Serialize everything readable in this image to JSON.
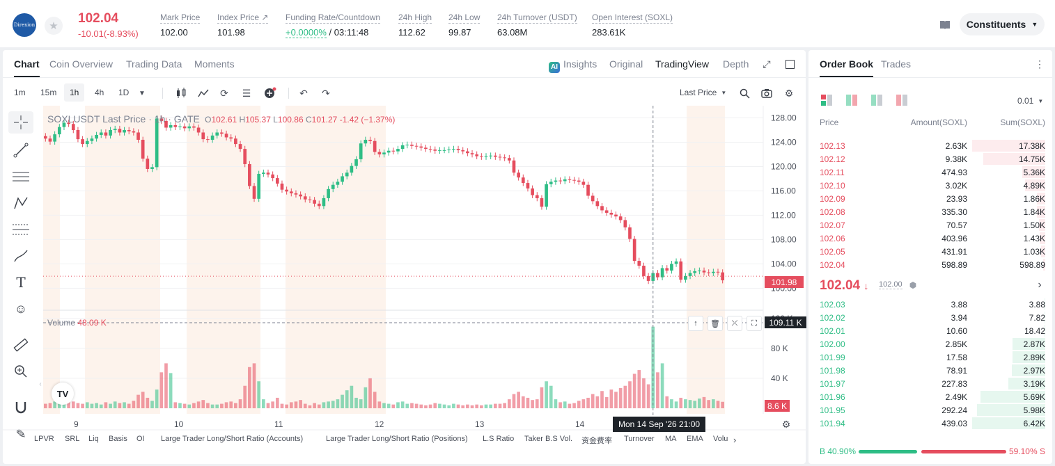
{
  "header": {
    "logo_text": "Direxion",
    "last_price": "102.04",
    "change": "-10.01(-8.93%)",
    "stats": [
      {
        "label": "Mark Price",
        "value": "102.00"
      },
      {
        "label": "Index Price ↗",
        "value": "101.98"
      },
      {
        "label": "Funding Rate/Countdown",
        "value_green": "+0.0000%",
        "value": "/ 03:11:48"
      },
      {
        "label": "24h High",
        "value": "112.62"
      },
      {
        "label": "24h Low",
        "value": "99.87"
      },
      {
        "label": "24h Turnover (USDT)",
        "value": "63.08M"
      },
      {
        "label": "Open Interest (SOXL)",
        "value": "283.61K"
      }
    ],
    "constituents_label": "Constituents"
  },
  "chart_panel": {
    "tabs": [
      "Chart",
      "Coin Overview",
      "Trading Data",
      "Moments"
    ],
    "view_tabs": [
      "Insights",
      "Original",
      "TradingView",
      "Depth"
    ],
    "ai_badge": "AI",
    "timeframes": [
      "1m",
      "15m",
      "1h",
      "4h",
      "1D"
    ],
    "price_type": "Last Price",
    "legend_title": "SOXLUSDT Last Price · 1h · GATE",
    "ohlc": {
      "o": "102.61",
      "h": "105.37",
      "l": "100.86",
      "c": "101.27",
      "chg": "-1.42 (−1.37%)"
    },
    "volume_label": "Volume",
    "volume_value": "48.09 K",
    "price_tag": "101.98",
    "volume_tag": "109.11 K",
    "volume_last_tag": "8.6 K",
    "crosshair_time": "Mon 14 Sep '26   21:00",
    "tv_logo": "TV",
    "indicators": [
      "LPVR",
      "SRL",
      "Liq",
      "Basis",
      "OI",
      "Large Trader Long/Short Ratio (Accounts)",
      "Large Trader Long/Short Ratio (Positions)",
      "L.S Ratio",
      "Taker B.S Vol.",
      "资金费率",
      "Turnover",
      "MA",
      "EMA",
      "Volu"
    ]
  },
  "chart_data": {
    "type": "candlestick",
    "symbol": "SOXLUSDT",
    "interval": "1h",
    "price_axis": {
      "ticks": [
        "128.00",
        "124.00",
        "120.00",
        "116.00",
        "112.00",
        "108.00",
        "104.00",
        "100.00"
      ],
      "range": [
        96.5,
        130
      ]
    },
    "volume_axis": {
      "ticks": [
        "120 K",
        "80 K",
        "40 K"
      ],
      "max": 130
    },
    "x_ticks": [
      "9",
      "10",
      "11",
      "12",
      "13",
      "14"
    ],
    "closes": [
      124.6,
      124.1,
      125.3,
      126.5,
      127.2,
      127.0,
      126.0,
      124.5,
      123.7,
      124.2,
      124.6,
      125.2,
      125.6,
      125.1,
      126.0,
      126.2,
      125.6,
      126.0,
      125.8,
      125.6,
      124.4,
      121.3,
      119.6,
      119.9,
      127.9,
      127.5,
      126.4,
      126.8,
      126.5,
      126.6,
      126.3,
      126.6,
      126.4,
      125.6,
      124.5,
      124.4,
      125.1,
      125.6,
      125.4,
      124.8,
      124.6,
      123.7,
      122.9,
      120.4,
      116.8,
      114.7,
      118.8,
      119.0,
      118.7,
      118.1,
      117.2,
      116.2,
      115.9,
      115.6,
      115.4,
      115.1,
      114.6,
      114.5,
      113.9,
      113.5,
      114.8,
      116.3,
      117.0,
      117.5,
      118.4,
      119.0,
      120.1,
      121.2,
      123.8,
      124.4,
      124.2,
      122.4,
      122.0,
      122.3,
      122.6,
      122.5,
      122.9,
      123.5,
      123.6,
      123.4,
      123.3,
      123.1,
      122.9,
      122.8,
      122.6,
      122.7,
      122.7,
      122.8,
      122.9,
      122.7,
      122.5,
      122.2,
      122.0,
      121.7,
      121.6,
      121.7,
      121.8,
      121.6,
      121.5,
      121.4,
      121.0,
      119.0,
      118.2,
      117.3,
      116.4,
      115.3,
      114.8,
      113.4,
      117.1,
      117.5,
      117.7,
      117.6,
      117.9,
      117.8,
      117.7,
      117.5,
      117.0,
      115.2,
      114.3,
      113.5,
      112.8,
      112.4,
      112.1,
      111.8,
      111.2,
      110.0,
      108.1,
      104.5,
      103.7,
      102.0,
      101.2,
      102.5,
      101.8,
      103.3,
      102.9,
      104.0,
      104.4,
      101.4,
      102.0,
      102.5,
      102.8,
      102.9,
      102.6,
      102.5,
      102.7,
      102.6,
      101.3
    ],
    "volumes": [
      6,
      7,
      9,
      8,
      12,
      10,
      9,
      7,
      6,
      8,
      6,
      7,
      5,
      8,
      6,
      9,
      7,
      8,
      6,
      10,
      18,
      22,
      14,
      10,
      25,
      48,
      60,
      47,
      8,
      7,
      6,
      5,
      7,
      9,
      11,
      7,
      5,
      5,
      6,
      8,
      9,
      7,
      12,
      30,
      55,
      60,
      36,
      12,
      7,
      9,
      14,
      6,
      5,
      8,
      9,
      11,
      6,
      4,
      7,
      5,
      8,
      9,
      10,
      12,
      18,
      24,
      30,
      14,
      12,
      28,
      40,
      22,
      9,
      7,
      6,
      5,
      8,
      9,
      6,
      7,
      6,
      5,
      4,
      5,
      7,
      6,
      5,
      4,
      6,
      5,
      4,
      5,
      4,
      5,
      4,
      5,
      5,
      6,
      6,
      7,
      12,
      19,
      22,
      16,
      14,
      11,
      12,
      28,
      36,
      30,
      12,
      8,
      9,
      6,
      7,
      10,
      12,
      14,
      19,
      16,
      23,
      15,
      25,
      22,
      27,
      30,
      36,
      46,
      51,
      40,
      32,
      109,
      48,
      60,
      16,
      12,
      9,
      14,
      12,
      11,
      10,
      13,
      15,
      11,
      12,
      10,
      8.6
    ]
  },
  "order_book": {
    "tabs": [
      "Order Book",
      "Trades"
    ],
    "precision": "0.01",
    "columns": [
      "Price",
      "Amount(SOXL)",
      "Sum(SOXL)"
    ],
    "asks": [
      {
        "price": "102.13",
        "amount": "2.63K",
        "sum": "17.38K",
        "depth": 1.0
      },
      {
        "price": "102.12",
        "amount": "9.38K",
        "sum": "14.75K",
        "depth": 0.85
      },
      {
        "price": "102.11",
        "amount": "474.93",
        "sum": "5.36K",
        "depth": 0.31
      },
      {
        "price": "102.10",
        "amount": "3.02K",
        "sum": "4.89K",
        "depth": 0.28
      },
      {
        "price": "102.09",
        "amount": "23.93",
        "sum": "1.86K",
        "depth": 0.11
      },
      {
        "price": "102.08",
        "amount": "335.30",
        "sum": "1.84K",
        "depth": 0.11
      },
      {
        "price": "102.07",
        "amount": "70.57",
        "sum": "1.50K",
        "depth": 0.09
      },
      {
        "price": "102.06",
        "amount": "403.96",
        "sum": "1.43K",
        "depth": 0.08
      },
      {
        "price": "102.05",
        "amount": "431.91",
        "sum": "1.03K",
        "depth": 0.06
      },
      {
        "price": "102.04",
        "amount": "598.89",
        "sum": "598.89",
        "depth": 0.03
      }
    ],
    "mid_price": "102.04",
    "mid_arrow": "↓",
    "mid_mark": "102.00",
    "bids": [
      {
        "price": "102.03",
        "amount": "3.88",
        "sum": "3.88",
        "depth": 0.01
      },
      {
        "price": "102.02",
        "amount": "3.94",
        "sum": "7.82",
        "depth": 0.01
      },
      {
        "price": "102.01",
        "amount": "10.60",
        "sum": "18.42",
        "depth": 0.01
      },
      {
        "price": "102.00",
        "amount": "2.85K",
        "sum": "2.87K",
        "depth": 0.45
      },
      {
        "price": "101.99",
        "amount": "17.58",
        "sum": "2.89K",
        "depth": 0.45
      },
      {
        "price": "101.98",
        "amount": "78.91",
        "sum": "2.97K",
        "depth": 0.46
      },
      {
        "price": "101.97",
        "amount": "227.83",
        "sum": "3.19K",
        "depth": 0.5
      },
      {
        "price": "101.96",
        "amount": "2.49K",
        "sum": "5.69K",
        "depth": 0.89
      },
      {
        "price": "101.95",
        "amount": "292.24",
        "sum": "5.98K",
        "depth": 0.93
      },
      {
        "price": "101.94",
        "amount": "439.03",
        "sum": "6.42K",
        "depth": 1.0
      }
    ],
    "buy_ratio": "B 40.90%",
    "sell_ratio": "59.10% S",
    "buy_fraction": 0.409
  },
  "colors": {
    "up": "#2ebd85",
    "down": "#e54d5e",
    "text": "#1e2329",
    "muted": "#7c8290"
  }
}
